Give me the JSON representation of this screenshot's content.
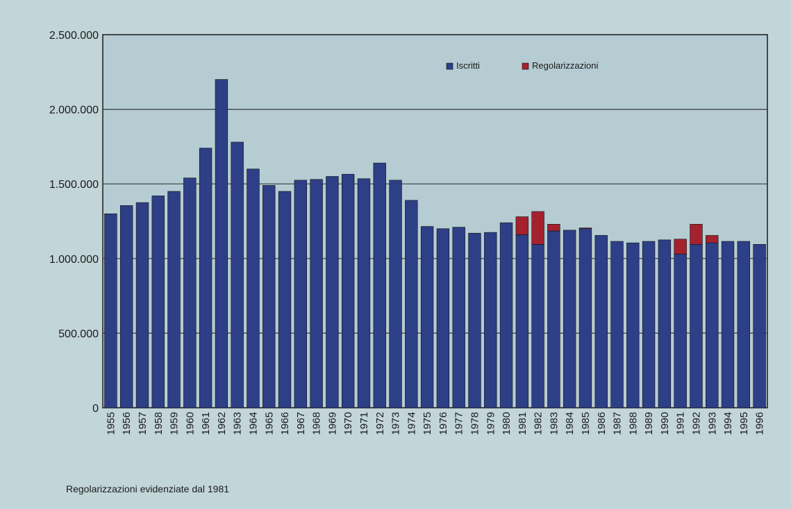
{
  "chart_data": {
    "type": "bar",
    "stacked": true,
    "categories": [
      "1955",
      "1956",
      "1957",
      "1958",
      "1959",
      "1960",
      "1961",
      "1962",
      "1963",
      "1964",
      "1965",
      "1966",
      "1967",
      "1968",
      "1969",
      "1970",
      "1971",
      "1972",
      "1973",
      "1974",
      "1975",
      "1976",
      "1977",
      "1978",
      "1979",
      "1980",
      "1981",
      "1982",
      "1983",
      "1984",
      "1985",
      "1986",
      "1987",
      "1988",
      "1989",
      "1990",
      "1991",
      "1992",
      "1993",
      "1994",
      "1995",
      "1996"
    ],
    "series": [
      {
        "name": "Iscritti",
        "color": "#2d3f86",
        "values": [
          1300000,
          1355000,
          1375000,
          1420000,
          1450000,
          1540000,
          1740000,
          2200000,
          1780000,
          1600000,
          1490000,
          1450000,
          1525000,
          1530000,
          1550000,
          1565000,
          1535000,
          1640000,
          1525000,
          1390000,
          1215000,
          1200000,
          1210000,
          1170000,
          1175000,
          1240000,
          1160000,
          1095000,
          1185000,
          1190000,
          1200000,
          1155000,
          1115000,
          1105000,
          1115000,
          1125000,
          1030000,
          1095000,
          1105000,
          1115000,
          1115000,
          1095000
        ]
      },
      {
        "name": "Regolarizzazioni",
        "color": "#a3222d",
        "values": [
          0,
          0,
          0,
          0,
          0,
          0,
          0,
          0,
          0,
          0,
          0,
          0,
          0,
          0,
          0,
          0,
          0,
          0,
          0,
          0,
          0,
          0,
          0,
          0,
          0,
          0,
          120000,
          220000,
          45000,
          0,
          5000,
          0,
          0,
          0,
          0,
          0,
          100000,
          135000,
          50000,
          0,
          0,
          0
        ]
      }
    ],
    "ylim": [
      0,
      2500000
    ],
    "yticks": [
      0,
      500000,
      1000000,
      1500000,
      2000000,
      2500000
    ],
    "ytick_labels": [
      "0",
      "500.000",
      "1.000.000",
      "1.500.000",
      "2.000.000",
      "2.500.000"
    ],
    "grid": true,
    "legend_position": "top-right",
    "footnote": "Regolarizzazioni evidenziate dal 1981"
  }
}
